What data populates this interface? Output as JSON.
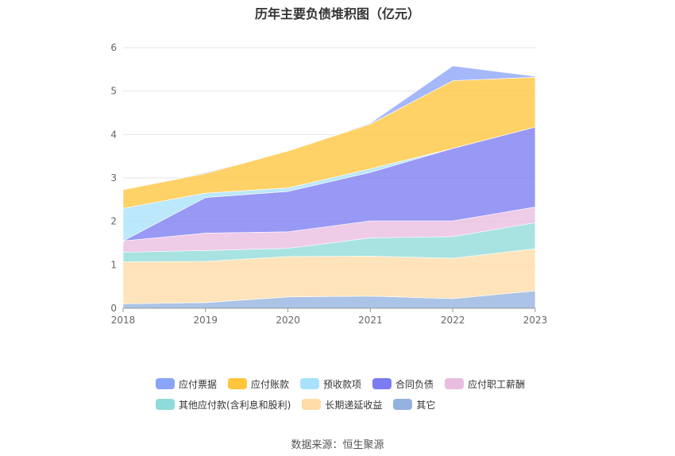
{
  "title": "历年主要负债堆积图（亿元）",
  "source": "数据来源：恒生聚源",
  "colors": [
    "#8aa4f8",
    "#ffc53d",
    "#a8e2fa",
    "#7b7cf2",
    "#e9bde0",
    "#8fdbd9",
    "#ffdca8",
    "#94b2df"
  ],
  "chart_data": {
    "type": "area",
    "stacked": true,
    "x": [
      "2018",
      "2019",
      "2020",
      "2021",
      "2022",
      "2023"
    ],
    "ylim": [
      0,
      6
    ],
    "yticks": [
      "0",
      "1",
      "2",
      "3",
      "4",
      "5",
      "6"
    ],
    "grid": true,
    "legend_position": "bottom",
    "series": [
      {
        "name": "其它",
        "values": [
          0.1,
          0.13,
          0.26,
          0.28,
          0.22,
          0.4
        ]
      },
      {
        "name": "长期递延收益",
        "values": [
          0.97,
          0.95,
          0.93,
          0.92,
          0.93,
          0.97
        ]
      },
      {
        "name": "其他应付款(含利息和股利)",
        "values": [
          0.22,
          0.25,
          0.19,
          0.42,
          0.5,
          0.6
        ]
      },
      {
        "name": "应付职工薪酬",
        "values": [
          0.26,
          0.4,
          0.38,
          0.39,
          0.36,
          0.36
        ]
      },
      {
        "name": "合同负债",
        "values": [
          0.0,
          0.82,
          0.93,
          1.12,
          1.67,
          1.84
        ]
      },
      {
        "name": "预收款项",
        "values": [
          0.75,
          0.1,
          0.08,
          0.08,
          0.0,
          0.0
        ]
      },
      {
        "name": "应付账款",
        "values": [
          0.43,
          0.45,
          0.85,
          1.03,
          1.56,
          1.15
        ]
      },
      {
        "name": "应付票据",
        "values": [
          0.0,
          0.02,
          0.0,
          0.02,
          0.34,
          0.02
        ]
      }
    ]
  },
  "legend": {
    "row1": [
      "应付票据",
      "应付账款",
      "预收款项",
      "合同负债",
      "应付职工薪酬"
    ],
    "row2": [
      "其他应付款(含利息和股利)",
      "长期递延收益",
      "其它"
    ]
  }
}
